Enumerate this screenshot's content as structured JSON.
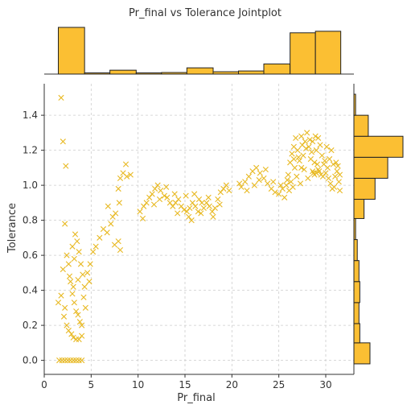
{
  "chart_data": {
    "type": "scatter",
    "title": "Pr_final vs Tolerance Jointplot",
    "xlabel": "Pr_final",
    "ylabel": "Tolerance",
    "xlim": [
      0,
      33
    ],
    "ylim": [
      -0.08,
      1.58
    ],
    "x_ticks": [
      "0",
      "5",
      "10",
      "15",
      "20",
      "25",
      "30"
    ],
    "y_ticks": [
      "0.0",
      "0.2",
      "0.4",
      "0.6",
      "0.8",
      "1.0",
      "1.2",
      "1.4"
    ],
    "grid": true,
    "marker": "x",
    "colors": {
      "marker": "#e8b923",
      "hist_fill": "#fbbf33",
      "hist_edge": "#222222",
      "grid": "#cccccc",
      "axis": "#333333"
    },
    "x_histogram": {
      "bin_edges": [
        1.5,
        4.3,
        7.0,
        9.8,
        12.5,
        15.2,
        18.0,
        20.7,
        23.4,
        26.2,
        28.9,
        31.6
      ],
      "heights": [
        60,
        1.5,
        5,
        1.5,
        2,
        8,
        3,
        4,
        13,
        53,
        55
      ]
    },
    "y_histogram": {
      "bin_edges": [
        -0.02,
        0.1,
        0.21,
        0.33,
        0.45,
        0.57,
        0.69,
        0.81,
        0.92,
        1.04,
        1.16,
        1.28,
        1.4,
        1.52
      ],
      "heights": [
        19,
        7,
        6,
        7,
        6,
        4,
        2,
        12,
        25,
        40,
        58,
        17,
        2
      ]
    },
    "points": [
      [
        1.8,
        1.5
      ],
      [
        2.0,
        1.25
      ],
      [
        2.3,
        1.11
      ],
      [
        1.6,
        0.0
      ],
      [
        1.9,
        0.0
      ],
      [
        2.2,
        0.0
      ],
      [
        2.5,
        0.0
      ],
      [
        2.8,
        0.0
      ],
      [
        3.1,
        0.0
      ],
      [
        3.4,
        0.0
      ],
      [
        3.7,
        0.0
      ],
      [
        4.0,
        0.0
      ],
      [
        1.8,
        0.37
      ],
      [
        2.2,
        0.3
      ],
      [
        2.1,
        0.25
      ],
      [
        2.4,
        0.2
      ],
      [
        2.6,
        0.17
      ],
      [
        2.9,
        0.15
      ],
      [
        3.1,
        0.13
      ],
      [
        3.4,
        0.12
      ],
      [
        3.7,
        0.12
      ],
      [
        4.0,
        0.14
      ],
      [
        1.5,
        0.33
      ],
      [
        2.0,
        0.52
      ],
      [
        2.2,
        0.78
      ],
      [
        2.4,
        0.6
      ],
      [
        2.6,
        0.55
      ],
      [
        2.8,
        0.45
      ],
      [
        3.0,
        0.38
      ],
      [
        3.2,
        0.33
      ],
      [
        3.4,
        0.28
      ],
      [
        3.6,
        0.26
      ],
      [
        3.8,
        0.22
      ],
      [
        4.0,
        0.2
      ],
      [
        3.3,
        0.72
      ],
      [
        3.5,
        0.68
      ],
      [
        3.7,
        0.62
      ],
      [
        3.9,
        0.55
      ],
      [
        4.1,
        0.49
      ],
      [
        4.3,
        0.42
      ],
      [
        3.0,
        0.65
      ],
      [
        3.2,
        0.58
      ],
      [
        3.6,
        0.46
      ],
      [
        4.2,
        0.36
      ],
      [
        4.4,
        0.3
      ],
      [
        2.7,
        0.48
      ],
      [
        3.1,
        0.42
      ],
      [
        4.6,
        0.5
      ],
      [
        4.9,
        0.55
      ],
      [
        5.2,
        0.62
      ],
      [
        5.5,
        0.65
      ],
      [
        5.9,
        0.7
      ],
      [
        6.3,
        0.75
      ],
      [
        6.7,
        0.73
      ],
      [
        7.1,
        0.78
      ],
      [
        7.5,
        0.66
      ],
      [
        7.9,
        0.68
      ],
      [
        8.1,
        0.63
      ],
      [
        7.6,
        0.84
      ],
      [
        8.0,
        0.9
      ],
      [
        7.9,
        0.98
      ],
      [
        8.1,
        1.04
      ],
      [
        8.4,
        1.07
      ],
      [
        8.7,
        1.12
      ],
      [
        8.8,
        1.05
      ],
      [
        9.2,
        1.06
      ],
      [
        7.3,
        0.82
      ],
      [
        6.8,
        0.88
      ],
      [
        4.8,
        0.45
      ],
      [
        10.2,
        0.85
      ],
      [
        10.6,
        0.88
      ],
      [
        10.9,
        0.9
      ],
      [
        11.2,
        0.93
      ],
      [
        11.5,
        0.95
      ],
      [
        11.8,
        0.98
      ],
      [
        12.1,
        1.0
      ],
      [
        12.4,
        0.97
      ],
      [
        12.8,
        0.94
      ],
      [
        13.1,
        0.93
      ],
      [
        13.4,
        0.9
      ],
      [
        13.7,
        0.88
      ],
      [
        14.0,
        0.9
      ],
      [
        14.3,
        0.92
      ],
      [
        14.6,
        0.88
      ],
      [
        14.9,
        0.86
      ],
      [
        15.2,
        0.85
      ],
      [
        15.5,
        0.87
      ],
      [
        15.8,
        0.9
      ],
      [
        16.1,
        0.88
      ],
      [
        16.4,
        0.85
      ],
      [
        16.7,
        0.84
      ],
      [
        17.0,
        0.87
      ],
      [
        17.3,
        0.9
      ],
      [
        17.6,
        0.88
      ],
      [
        17.9,
        0.85
      ],
      [
        18.2,
        0.87
      ],
      [
        18.5,
        0.92
      ],
      [
        18.8,
        0.96
      ],
      [
        19.1,
        0.98
      ],
      [
        19.4,
        1.0
      ],
      [
        19.7,
        0.97
      ],
      [
        12.3,
        0.92
      ],
      [
        13.0,
        0.99
      ],
      [
        14.2,
        0.84
      ],
      [
        15.1,
        0.94
      ],
      [
        15.4,
        0.82
      ],
      [
        16.0,
        0.95
      ],
      [
        16.8,
        0.9
      ],
      [
        17.5,
        0.93
      ],
      [
        18.0,
        0.82
      ],
      [
        18.7,
        0.89
      ],
      [
        10.5,
        0.81
      ],
      [
        11.7,
        0.89
      ],
      [
        13.9,
        0.95
      ],
      [
        15.7,
        0.8
      ],
      [
        16.5,
        0.92
      ],
      [
        21.0,
        0.99
      ],
      [
        21.4,
        1.02
      ],
      [
        21.8,
        1.05
      ],
      [
        22.2,
        1.08
      ],
      [
        22.6,
        1.1
      ],
      [
        23.0,
        1.07
      ],
      [
        23.4,
        1.04
      ],
      [
        23.8,
        1.01
      ],
      [
        24.2,
        0.98
      ],
      [
        24.6,
        0.96
      ],
      [
        25.0,
        0.95
      ],
      [
        25.4,
        0.98
      ],
      [
        20.8,
        1.01
      ],
      [
        21.6,
        0.97
      ],
      [
        22.9,
        1.03
      ],
      [
        23.6,
        1.09
      ],
      [
        24.4,
        1.02
      ],
      [
        25.2,
        1.0
      ],
      [
        25.6,
        0.93
      ],
      [
        22.4,
        1.0
      ],
      [
        25.8,
        1.0
      ],
      [
        26.0,
        1.06
      ],
      [
        26.2,
        1.13
      ],
      [
        26.4,
        1.18
      ],
      [
        26.6,
        1.22
      ],
      [
        26.8,
        1.27
      ],
      [
        27.0,
        1.2
      ],
      [
        27.2,
        1.14
      ],
      [
        27.4,
        1.1
      ],
      [
        27.6,
        1.17
      ],
      [
        27.8,
        1.25
      ],
      [
        28.0,
        1.3
      ],
      [
        28.2,
        1.22
      ],
      [
        28.4,
        1.15
      ],
      [
        28.6,
        1.08
      ],
      [
        28.8,
        1.13
      ],
      [
        29.0,
        1.2
      ],
      [
        29.2,
        1.27
      ],
      [
        29.4,
        1.23
      ],
      [
        29.6,
        1.17
      ],
      [
        29.8,
        1.12
      ],
      [
        30.0,
        1.07
      ],
      [
        30.2,
        1.1
      ],
      [
        30.4,
        1.15
      ],
      [
        30.6,
        1.2
      ],
      [
        30.8,
        1.12
      ],
      [
        31.0,
        1.05
      ],
      [
        31.2,
        1.08
      ],
      [
        31.4,
        1.02
      ],
      [
        31.5,
        0.97
      ],
      [
        26.5,
        0.99
      ],
      [
        26.9,
        1.05
      ],
      [
        27.3,
        1.01
      ],
      [
        27.7,
        1.09
      ],
      [
        28.1,
        1.04
      ],
      [
        28.5,
        1.19
      ],
      [
        28.9,
        1.28
      ],
      [
        29.3,
        1.08
      ],
      [
        29.7,
        1.05
      ],
      [
        30.1,
        1.22
      ],
      [
        30.5,
        1.01
      ],
      [
        30.9,
        0.99
      ],
      [
        31.3,
        1.11
      ],
      [
        26.1,
        0.97
      ],
      [
        26.7,
        1.1
      ],
      [
        27.1,
        1.16
      ],
      [
        27.5,
        1.23
      ],
      [
        27.9,
        1.21
      ],
      [
        28.3,
        1.26
      ],
      [
        28.7,
        1.07
      ],
      [
        29.1,
        1.12
      ],
      [
        29.5,
        1.06
      ],
      [
        29.9,
        1.14
      ],
      [
        30.3,
        1.04
      ],
      [
        30.7,
        0.98
      ],
      [
        31.1,
        1.13
      ],
      [
        31.5,
        1.06
      ],
      [
        26.3,
        1.02
      ],
      [
        29.0,
        1.07
      ],
      [
        28.8,
        1.06
      ],
      [
        29.2,
        1.09
      ],
      [
        28.6,
        1.25
      ],
      [
        27.4,
        1.28
      ],
      [
        26.6,
        1.15
      ],
      [
        25.9,
        1.03
      ]
    ]
  }
}
